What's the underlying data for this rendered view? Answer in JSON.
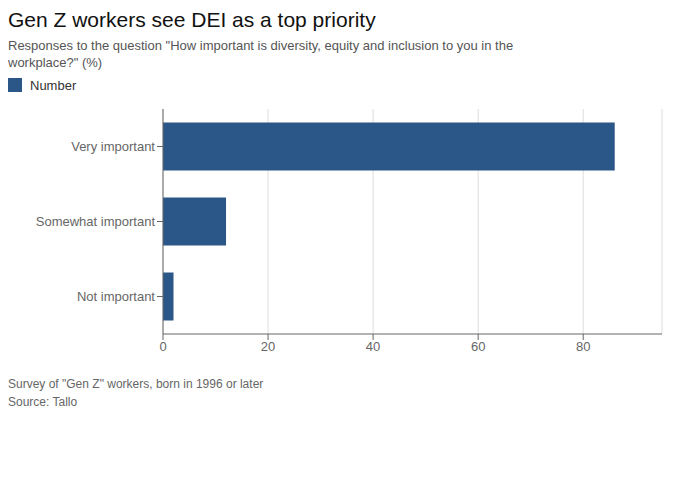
{
  "chart_data": {
    "type": "bar",
    "orientation": "horizontal",
    "title": "Gen Z workers see DEI as a top priority",
    "subtitle": "Responses to the question \"How important is diversity, equity and inclusion to you in the\nworkplace?\" (%)",
    "categories": [
      "Very important",
      "Somewhat important",
      "Not important"
    ],
    "series": [
      {
        "name": "Number",
        "color": "#2A5788",
        "values": [
          86,
          12,
          2
        ]
      }
    ],
    "xlim": [
      0,
      95
    ],
    "xticks": [
      0,
      20,
      40,
      60,
      80
    ],
    "grid": true,
    "legend": "upper left",
    "annotations": [
      "Survey of \"Gen Z\" workers, born in 1996 or later",
      "Source: Tallo"
    ]
  }
}
